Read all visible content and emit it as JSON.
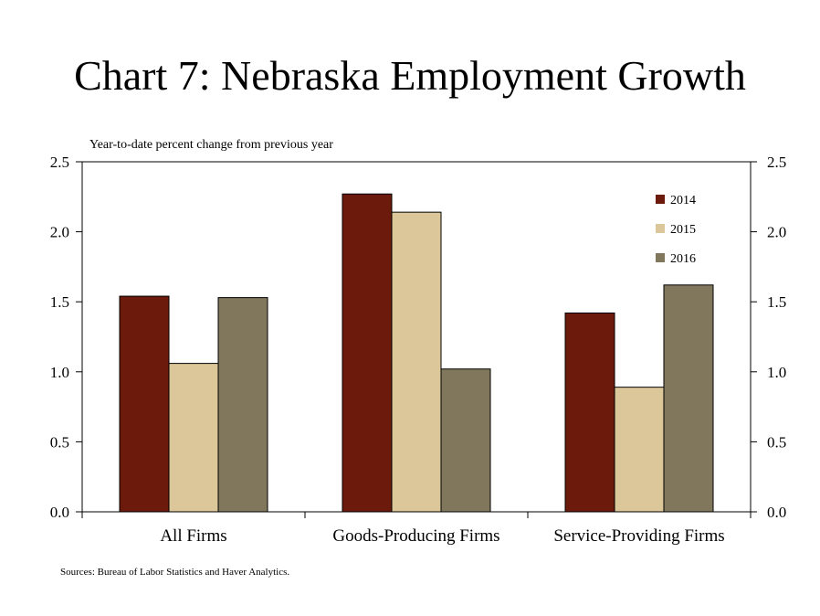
{
  "title": "Chart 7: Nebraska Employment Growth",
  "source": "Sources: Bureau of Labor Statistics and Haver Analytics.",
  "chart_data": {
    "type": "bar",
    "title": "Chart 7: Nebraska Employment Growth",
    "ylabel": "Year-to-date percent change from previous year",
    "xlabel": "",
    "categories": [
      "All Firms",
      "Goods-Producing Firms",
      "Service-Providing Firms"
    ],
    "series": [
      {
        "name": "2014",
        "color": "#6B1A0C",
        "values": [
          1.54,
          2.27,
          1.42
        ]
      },
      {
        "name": "2015",
        "color": "#DCC79A",
        "values": [
          1.06,
          2.14,
          0.89
        ]
      },
      {
        "name": "2016",
        "color": "#80775C",
        "values": [
          1.53,
          1.02,
          1.62
        ]
      }
    ],
    "ylim": [
      0,
      2.5
    ],
    "yticks": [
      "0.0",
      "0.5",
      "1.0",
      "1.5",
      "2.0",
      "2.5"
    ],
    "secondary_axis": true,
    "grid": false,
    "legend": "top-right"
  }
}
